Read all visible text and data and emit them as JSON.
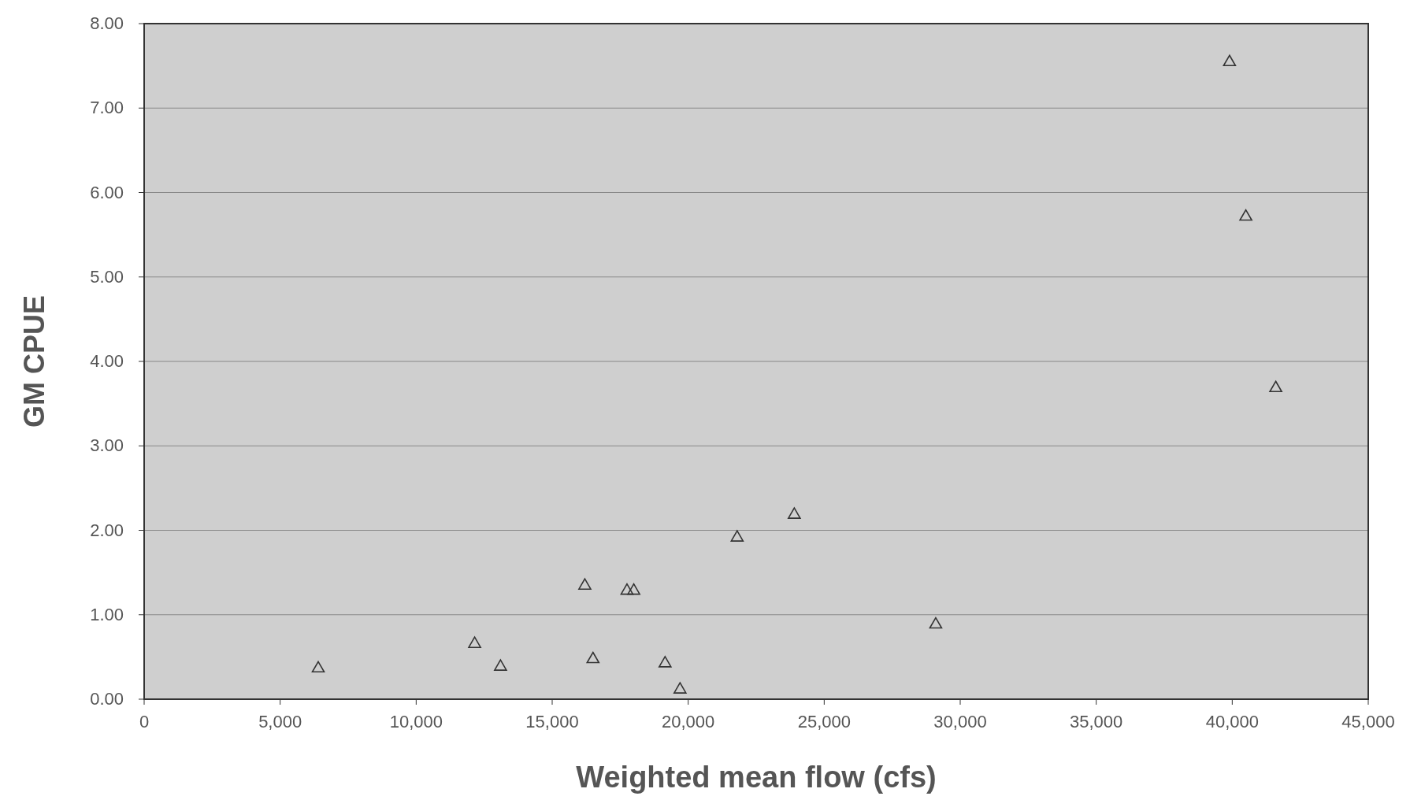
{
  "chart_data": {
    "type": "scatter",
    "xlabel": "Weighted mean flow (cfs)",
    "ylabel": "GM CPUE",
    "x": [
      6400,
      12150,
      13100,
      16200,
      16500,
      17750,
      18000,
      19150,
      19700,
      21800,
      23900,
      29100,
      39900,
      40500,
      41600
    ],
    "values": [
      0.37,
      0.66,
      0.39,
      1.35,
      0.48,
      1.29,
      1.29,
      0.43,
      0.12,
      1.92,
      2.19,
      0.89,
      7.55,
      5.72,
      3.69
    ],
    "color": "#333333",
    "marker": "triangle",
    "grid": "y",
    "xlim": [
      0,
      45000
    ],
    "xticks": [
      0,
      {
        "value": 5000,
        "label": "5,000"
      },
      {
        "value": 10000,
        "label": "10,000"
      },
      {
        "value": 15000,
        "label": "15,000"
      },
      {
        "value": 20000,
        "label": "20,000"
      },
      {
        "value": 25000,
        "label": "25,000"
      },
      {
        "value": 30000,
        "label": "30,000"
      },
      {
        "value": 35000,
        "label": "35,000"
      },
      {
        "value": 40000,
        "label": "40,000"
      },
      {
        "value": 45000,
        "label": "45,000"
      }
    ],
    "ylim": [
      0,
      8
    ],
    "yticks": [
      {
        "value": 0,
        "label": "0.00"
      },
      {
        "value": 1,
        "label": "1.00"
      },
      {
        "value": 2,
        "label": "2.00"
      },
      {
        "value": 3,
        "label": "3.00"
      },
      {
        "value": 4,
        "label": "4.00"
      },
      {
        "value": 5,
        "label": "5.00"
      },
      {
        "value": 6,
        "label": "6.00"
      },
      {
        "value": 7,
        "label": "7.00"
      },
      {
        "value": 8,
        "label": "8.00"
      }
    ]
  }
}
